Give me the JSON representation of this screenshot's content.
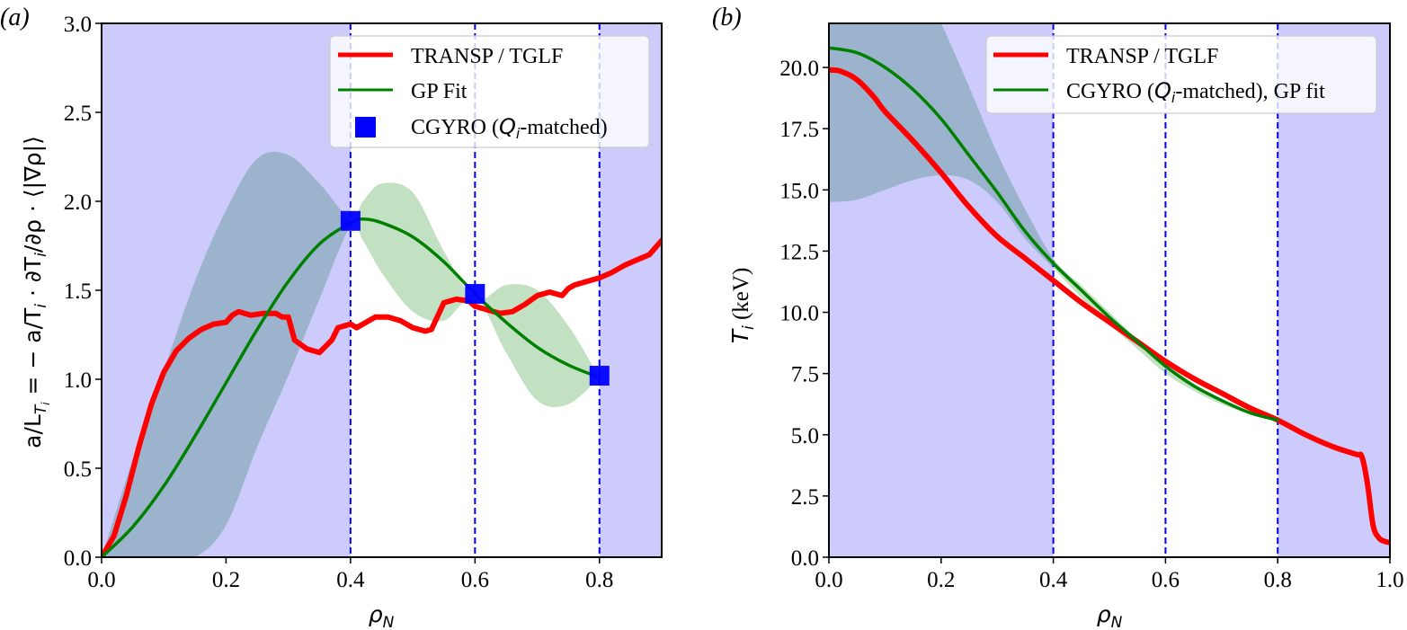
{
  "chart_data": [
    {
      "panel": "(a)",
      "type": "line",
      "title": "",
      "xlabel": "ρ_N",
      "ylabel": "a/L_Ti = − a/T_i · ∂T_i/∂ρ · ⟨|∇ρ|⟩",
      "xlim": [
        0.0,
        0.9
      ],
      "ylim": [
        0.0,
        3.0
      ],
      "xticks": [
        "0.0",
        "0.2",
        "0.4",
        "0.6",
        "0.8"
      ],
      "xtick_values": [
        0.0,
        0.2,
        0.4,
        0.6,
        0.8
      ],
      "yticks": [
        "0.0",
        "0.5",
        "1.0",
        "1.5",
        "2.0",
        "2.5",
        "3.0"
      ],
      "ytick_values": [
        0.0,
        0.5,
        1.0,
        1.5,
        2.0,
        2.5,
        3.0
      ],
      "legend_position": "top-right",
      "shaded_regions": [
        {
          "name": "extrapolation-left",
          "x_range": [
            0.0,
            0.4
          ],
          "color": "#cccbfb"
        },
        {
          "name": "extrapolation-right",
          "x_range": [
            0.8,
            0.9
          ],
          "color": "#cccbfb"
        }
      ],
      "vlines": [
        0.4,
        0.6,
        0.8
      ],
      "vline_color": "#0000ff",
      "series": [
        {
          "name": "TRANSP / TGLF",
          "color": "#ff0000",
          "x": [
            0.0,
            0.02,
            0.04,
            0.06,
            0.08,
            0.1,
            0.12,
            0.14,
            0.16,
            0.18,
            0.2,
            0.21,
            0.22,
            0.24,
            0.26,
            0.28,
            0.29,
            0.3,
            0.31,
            0.33,
            0.35,
            0.37,
            0.38,
            0.4,
            0.41,
            0.42,
            0.44,
            0.46,
            0.48,
            0.5,
            0.52,
            0.53,
            0.55,
            0.57,
            0.59,
            0.6,
            0.62,
            0.64,
            0.66,
            0.68,
            0.7,
            0.72,
            0.74,
            0.75,
            0.76,
            0.78,
            0.8,
            0.82,
            0.84,
            0.86,
            0.88,
            0.9
          ],
          "y": [
            0.0,
            0.12,
            0.35,
            0.62,
            0.86,
            1.04,
            1.16,
            1.23,
            1.28,
            1.31,
            1.32,
            1.36,
            1.38,
            1.36,
            1.37,
            1.37,
            1.35,
            1.35,
            1.22,
            1.17,
            1.15,
            1.22,
            1.29,
            1.31,
            1.29,
            1.31,
            1.35,
            1.35,
            1.33,
            1.29,
            1.27,
            1.28,
            1.43,
            1.45,
            1.44,
            1.41,
            1.39,
            1.37,
            1.38,
            1.42,
            1.47,
            1.49,
            1.47,
            1.51,
            1.53,
            1.55,
            1.57,
            1.6,
            1.64,
            1.67,
            1.7,
            1.78
          ]
        },
        {
          "name": "GP Fit",
          "color": "#008000",
          "x": [
            0.0,
            0.05,
            0.1,
            0.15,
            0.2,
            0.25,
            0.3,
            0.35,
            0.4,
            0.42,
            0.45,
            0.5,
            0.55,
            0.6,
            0.65,
            0.7,
            0.75,
            0.8
          ],
          "y": [
            0.0,
            0.17,
            0.4,
            0.68,
            0.98,
            1.28,
            1.55,
            1.76,
            1.88,
            1.9,
            1.88,
            1.8,
            1.66,
            1.48,
            1.32,
            1.18,
            1.08,
            1.01
          ],
          "band_upper": [
            0.0,
            0.55,
            1.05,
            1.55,
            1.95,
            2.24,
            2.26,
            2.1,
            1.9,
            2.0,
            2.1,
            2.05,
            1.72,
            1.45,
            1.53,
            1.5,
            1.3,
            1.01
          ],
          "band_lower": [
            0.0,
            0.0,
            0.0,
            0.0,
            0.18,
            0.62,
            1.02,
            1.45,
            1.86,
            1.78,
            1.6,
            1.38,
            1.33,
            1.46,
            1.15,
            0.88,
            0.86,
            1.01
          ],
          "band_colors": {
            "inside_shade": "#9bb3cc",
            "outside_shade": "#c2e0c2"
          }
        },
        {
          "name": "CGYRO (Q_i-matched)",
          "type": "scatter",
          "marker": "square",
          "color": "#0000ff",
          "x": [
            0.4,
            0.6,
            0.8
          ],
          "y": [
            1.89,
            1.48,
            1.02
          ]
        }
      ]
    },
    {
      "panel": "(b)",
      "type": "line",
      "title": "",
      "xlabel": "ρ_N",
      "ylabel": "T_i (keV)",
      "xlim": [
        0.0,
        1.0
      ],
      "ylim": [
        0.0,
        21.8
      ],
      "xticks": [
        "0.0",
        "0.2",
        "0.4",
        "0.6",
        "0.8",
        "1.0"
      ],
      "xtick_values": [
        0.0,
        0.2,
        0.4,
        0.6,
        0.8,
        1.0
      ],
      "yticks": [
        "0.0",
        "2.5",
        "5.0",
        "7.5",
        "10.0",
        "12.5",
        "15.0",
        "17.5",
        "20.0"
      ],
      "ytick_values": [
        0.0,
        2.5,
        5.0,
        7.5,
        10.0,
        12.5,
        15.0,
        17.5,
        20.0
      ],
      "legend_position": "top-right",
      "shaded_regions": [
        {
          "name": "extrapolation-left",
          "x_range": [
            0.0,
            0.4
          ],
          "color": "#cccbfb"
        },
        {
          "name": "extrapolation-right",
          "x_range": [
            0.8,
            1.0
          ],
          "color": "#cccbfb"
        }
      ],
      "vlines": [
        0.4,
        0.6,
        0.8
      ],
      "vline_color": "#0000ff",
      "series": [
        {
          "name": "TRANSP / TGLF",
          "color": "#ff0000",
          "x": [
            0.0,
            0.02,
            0.05,
            0.08,
            0.1,
            0.15,
            0.2,
            0.25,
            0.3,
            0.35,
            0.4,
            0.45,
            0.5,
            0.55,
            0.6,
            0.65,
            0.7,
            0.75,
            0.8,
            0.85,
            0.9,
            0.94,
            0.95,
            0.96,
            0.97,
            0.98,
            0.99,
            1.0
          ],
          "y": [
            19.9,
            19.85,
            19.5,
            18.8,
            18.2,
            17.0,
            15.7,
            14.3,
            13.1,
            12.2,
            11.3,
            10.4,
            9.6,
            8.8,
            8.0,
            7.3,
            6.7,
            6.1,
            5.6,
            5.0,
            4.5,
            4.2,
            4.1,
            3.0,
            1.3,
            0.8,
            0.65,
            0.6
          ]
        },
        {
          "name": "CGYRO (Q_i-matched), GP fit",
          "color": "#008000",
          "x": [
            0.0,
            0.05,
            0.1,
            0.15,
            0.2,
            0.25,
            0.3,
            0.35,
            0.4,
            0.45,
            0.5,
            0.55,
            0.6,
            0.65,
            0.7,
            0.75,
            0.8
          ],
          "y": [
            20.8,
            20.6,
            20.0,
            19.1,
            17.9,
            16.4,
            14.9,
            13.3,
            12.0,
            10.9,
            9.8,
            8.8,
            7.8,
            7.0,
            6.4,
            5.9,
            5.6
          ],
          "band_upper": [
            30.0,
            28.0,
            26.0,
            24.0,
            21.8,
            19.2,
            16.5,
            14.2,
            12.2,
            11.1,
            10.0,
            8.9,
            7.95,
            7.1,
            6.45,
            5.95,
            5.6
          ],
          "band_lower": [
            14.5,
            14.6,
            15.0,
            15.4,
            15.6,
            15.4,
            14.5,
            13.0,
            11.8,
            10.6,
            9.5,
            8.5,
            7.5,
            6.8,
            6.25,
            5.85,
            5.6
          ],
          "band_colors": {
            "inside_shade": "#9bb3cc",
            "outside_shade": "#c2e0c2"
          }
        }
      ]
    }
  ],
  "panels": {
    "a": {
      "label": "(a)",
      "xlabel_main": "ρ",
      "xlabel_sub": "N",
      "ylabel_text": "a/L",
      "ylabel_sub": "T",
      "ylabel_subsub": "i",
      "ylabel_rest": " = − a/T",
      "ylabel_sub2": "i",
      "ylabel_rest2": " · ∂T",
      "ylabel_sub3": "i",
      "ylabel_rest3": "/∂ρ · ⟨|∇ρ|⟩",
      "legend": [
        {
          "label": "TRANSP / TGLF"
        },
        {
          "label": "GP Fit"
        },
        {
          "label_pre": "CGYRO (",
          "label_italic": "Q",
          "label_sub": "i",
          "label_post": "-matched)"
        }
      ]
    },
    "b": {
      "label": "(b)",
      "xlabel_main": "ρ",
      "xlabel_sub": "N",
      "ylabel_italic": "T",
      "ylabel_sub": "i",
      "ylabel_rest": " (keV)",
      "legend": [
        {
          "label": "TRANSP / TGLF"
        },
        {
          "label_pre": "CGYRO (",
          "label_italic": "Q",
          "label_sub": "i",
          "label_post": "-matched), GP fit"
        }
      ]
    }
  }
}
